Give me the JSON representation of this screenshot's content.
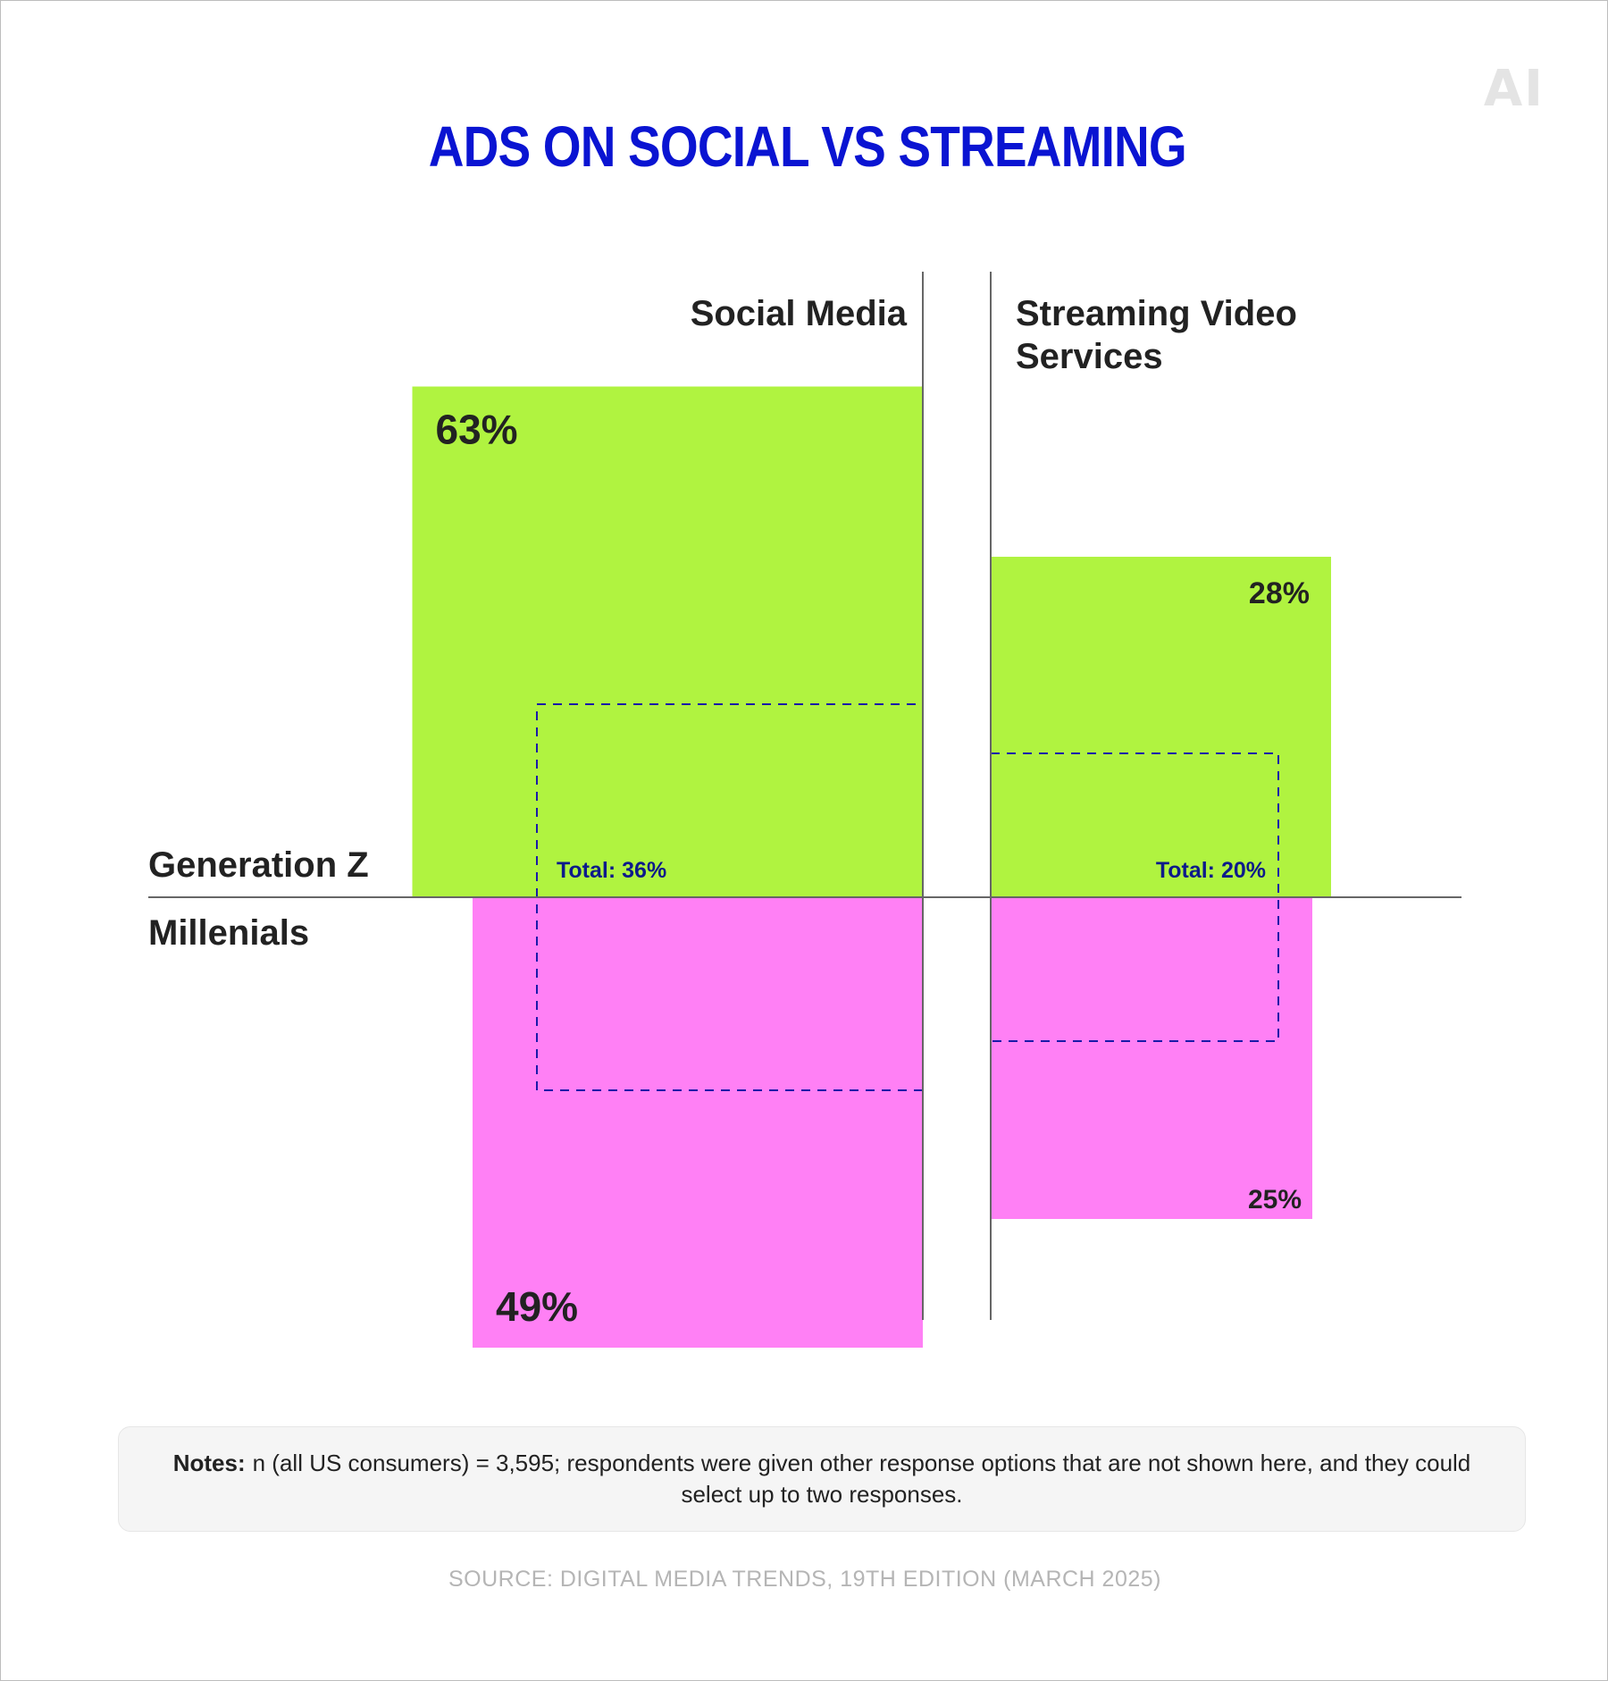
{
  "title": "ADS ON SOCIAL VS STREAMING",
  "logo_text": "AI",
  "notes": {
    "label": "Notes:",
    "text": "n (all US consumers) = 3,595; respondents were given other response options that are not shown here, and they could select up to two responses."
  },
  "source": "SOURCE: DIGITAL MEDIA TRENDS, 19TH EDITION (MARCH 2025)",
  "colors": {
    "title": "#0a14d2",
    "gen_z": "#b0f340",
    "millennials": "#ff80f5",
    "total_outline": "#1a1aa8",
    "total_label": "#0d1a8a",
    "text": "#222222",
    "axis": "#666666"
  },
  "chart_data": {
    "type": "bar",
    "title": "ADS ON SOCIAL VS STREAMING",
    "categories": [
      "Social Media",
      "Streaming Video Services"
    ],
    "category_labels": [
      [
        "Social Media"
      ],
      [
        "Streaming Video",
        "Services"
      ]
    ],
    "groups": [
      "Generation Z",
      "Millenials"
    ],
    "series": [
      {
        "name": "Generation Z",
        "values": [
          63,
          28
        ],
        "labels": [
          "63%",
          "28%"
        ]
      },
      {
        "name": "Millenials",
        "values": [
          49,
          25
        ],
        "labels": [
          "49%",
          "25%"
        ]
      }
    ],
    "totals": {
      "values": [
        36,
        20
      ],
      "labels": [
        "Total: 36%",
        "Total: 20%"
      ]
    },
    "legend": "none",
    "grid": false
  }
}
